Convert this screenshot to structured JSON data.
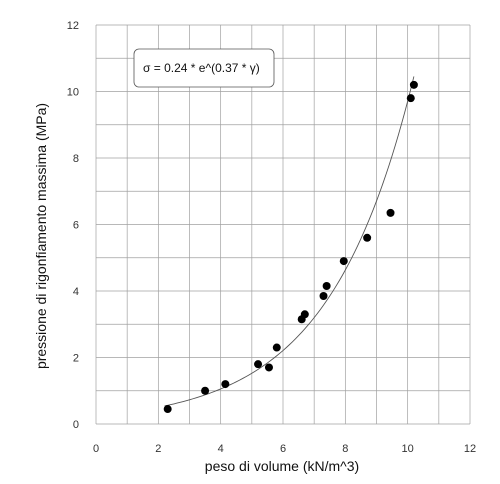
{
  "chart_data": {
    "type": "scatter",
    "xlabel": "peso di volume (kN/m^3)",
    "ylabel": "pressione di rigonfiamento massima (MPa)",
    "xlim": [
      0,
      12
    ],
    "ylim": [
      0,
      12
    ],
    "xticks": [
      0,
      2,
      4,
      6,
      8,
      10,
      12
    ],
    "yticks": [
      0,
      2,
      4,
      6,
      8,
      10,
      12
    ],
    "grid": true,
    "annotation": "σ = 0.24 * e^(0.37 * γ)",
    "points": [
      {
        "x": 2.3,
        "y": 0.45
      },
      {
        "x": 3.5,
        "y": 1.0
      },
      {
        "x": 4.15,
        "y": 1.2
      },
      {
        "x": 5.2,
        "y": 1.8
      },
      {
        "x": 5.55,
        "y": 1.7
      },
      {
        "x": 5.8,
        "y": 2.3
      },
      {
        "x": 6.6,
        "y": 3.15
      },
      {
        "x": 6.7,
        "y": 3.3
      },
      {
        "x": 7.3,
        "y": 3.85
      },
      {
        "x": 7.4,
        "y": 4.15
      },
      {
        "x": 7.95,
        "y": 4.9
      },
      {
        "x": 8.7,
        "y": 5.6
      },
      {
        "x": 9.45,
        "y": 6.35
      },
      {
        "x": 10.1,
        "y": 9.8
      },
      {
        "x": 10.2,
        "y": 10.2
      }
    ],
    "fit": {
      "a": 0.24,
      "b": 0.37,
      "x_range": [
        2.2,
        10.2
      ]
    },
    "colors": {
      "points": "#000000",
      "grid": "#a0a0a0",
      "curve": "#555555",
      "axis": "#555555"
    }
  }
}
